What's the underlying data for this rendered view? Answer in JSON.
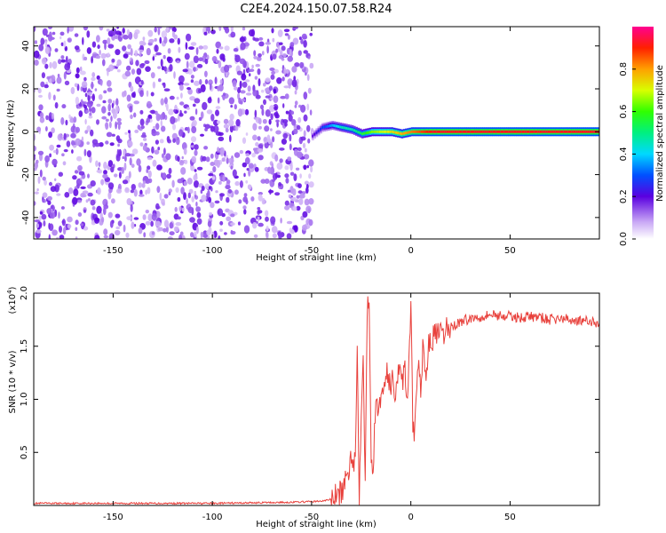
{
  "title": "C2E4.2024.150.07.58.R24",
  "colorbar": {
    "label": "Normalized spectral amplitude",
    "ticks": [
      "0.0",
      "0.2",
      "0.4",
      "0.6",
      "0.8"
    ],
    "tick_values": [
      0.0,
      0.2,
      0.4,
      0.6,
      0.8
    ],
    "range": [
      0,
      1
    ]
  },
  "chart_data": [
    {
      "type": "heatmap",
      "xlabel": "Height of straight line (km)",
      "ylabel": "Frequency (Hz)",
      "xlim": [
        -190,
        95
      ],
      "ylim": [
        -50,
        49
      ],
      "xticks": [
        -150,
        -100,
        -50,
        0,
        50
      ],
      "xtick_labels": [
        "-150",
        "-100",
        "-50",
        "0",
        "50"
      ],
      "yticks": [
        -40,
        -20,
        0,
        20,
        40
      ],
      "ytick_labels": [
        "-40",
        "-20",
        "0",
        "20",
        "40"
      ],
      "noise_region": {
        "x_range": [
          -190,
          -50
        ],
        "amplitude_range": [
          0.05,
          0.2
        ]
      },
      "signal_line": {
        "frequency": 0,
        "x": [
          -50,
          -45,
          -40,
          -35,
          -30,
          -25,
          -20,
          -15,
          -10,
          -5,
          0,
          5,
          10,
          95
        ],
        "freq_offset": [
          -2,
          2,
          3,
          2,
          1,
          -1,
          0,
          0,
          0,
          -1,
          0,
          0,
          0,
          0
        ],
        "amplitude": [
          0.2,
          0.3,
          0.4,
          0.5,
          0.5,
          0.6,
          0.7,
          0.75,
          0.8,
          0.85,
          0.9,
          0.95,
          1.0,
          1.0
        ]
      }
    },
    {
      "type": "line",
      "xlabel": "Height of straight line (km)",
      "ylabel": "SNR (10 * v/v)",
      "scale_label": "(x10",
      "scale_exponent": "4",
      "scale_close": ")",
      "xlim": [
        -190,
        95
      ],
      "ylim": [
        0,
        2.0
      ],
      "xticks": [
        -150,
        -100,
        -50,
        0,
        50
      ],
      "xtick_labels": [
        "-150",
        "-100",
        "-50",
        "0",
        "50"
      ],
      "yticks": [
        0.5,
        1.0,
        1.5,
        2.0
      ],
      "ytick_labels": [
        "0.5",
        "1.0",
        "1.5",
        "2.0"
      ],
      "color": "#e8413c",
      "series": [
        {
          "x": [
            -190,
            -150,
            -100,
            -60,
            -45,
            -40,
            -35,
            -32,
            -30,
            -28,
            -27,
            -26,
            -25,
            -24,
            -23,
            -22,
            -21,
            -20,
            -19,
            -18,
            -17,
            -16,
            -15,
            -14,
            -13,
            -12,
            -11,
            -10,
            -9,
            -8,
            -7,
            -6,
            -5,
            -4,
            -3,
            -2,
            -1,
            0,
            1,
            2,
            3,
            4,
            5,
            6,
            7,
            8,
            9,
            10,
            12,
            14,
            16,
            18,
            20,
            22,
            25,
            28,
            30,
            35,
            40,
            45,
            50,
            55,
            60,
            65,
            70,
            75,
            80,
            85,
            90,
            95
          ],
          "y": [
            0.02,
            0.02,
            0.02,
            0.03,
            0.04,
            0.06,
            0.12,
            0.25,
            0.5,
            0.4,
            1.48,
            0.1,
            0.9,
            1.5,
            0.2,
            1.8,
            2.0,
            0.5,
            0.3,
            0.85,
            0.95,
            0.88,
            1.1,
            1.05,
            1.2,
            1.3,
            1.15,
            1.1,
            1.22,
            1.0,
            1.25,
            1.28,
            1.3,
            1.18,
            1.35,
            1.0,
            1.3,
            1.95,
            0.7,
            0.65,
            1.1,
            1.4,
            1.1,
            1.45,
            1.38,
            1.25,
            1.5,
            1.55,
            1.6,
            1.62,
            1.58,
            1.66,
            1.68,
            1.7,
            1.73,
            1.75,
            1.76,
            1.78,
            1.8,
            1.79,
            1.78,
            1.77,
            1.78,
            1.77,
            1.75,
            1.76,
            1.75,
            1.74,
            1.73,
            1.72
          ]
        }
      ]
    }
  ]
}
